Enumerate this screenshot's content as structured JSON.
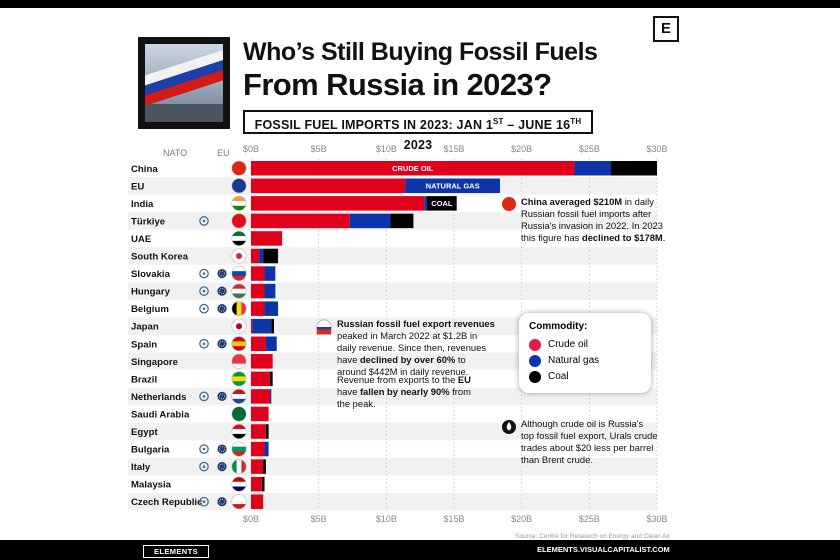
{
  "header": {
    "title_line1": "Who’s Still Buying Fossil Fuels",
    "title_line2": "From Russia in 2023?",
    "subtitle_a": "FOSSIL FUEL IMPORTS IN 2023: JAN 1",
    "subtitle_sup1": "ST",
    "subtitle_b": " – JUNE 16",
    "subtitle_sup2": "TH",
    "subtitle_c": " 2023",
    "logo_letter": "E"
  },
  "column_headers": {
    "nato": "NATO",
    "eu": "EU"
  },
  "colors": {
    "crude_oil": "#e0001b",
    "natural_gas": "#0b35a8",
    "coal": "#000000",
    "nato": "#4a6b8c",
    "eu": "#1a3b8f"
  },
  "chart_data": {
    "type": "bar",
    "orientation": "horizontal",
    "stacked": true,
    "xlim": [
      0,
      30
    ],
    "ticks": [
      "$0B",
      "$5B",
      "$10B",
      "$15B",
      "$20B",
      "$25B",
      "$30B"
    ],
    "tick_values": [
      0,
      5,
      10,
      15,
      20,
      25,
      30
    ],
    "categories": [
      "China",
      "EU",
      "India",
      "Türkiye",
      "UAE",
      "South Korea",
      "Slovakia",
      "Hungary",
      "Belgium",
      "Japan",
      "Spain",
      "Singapore",
      "Brazil",
      "Netherlands",
      "Saudi Arabia",
      "Egypt",
      "Bulgaria",
      "Italy",
      "Malaysia",
      "Czech Republic"
    ],
    "nato": [
      false,
      false,
      false,
      true,
      false,
      false,
      true,
      true,
      true,
      false,
      true,
      false,
      false,
      true,
      false,
      false,
      true,
      true,
      false,
      true
    ],
    "eu": [
      false,
      false,
      false,
      false,
      false,
      false,
      true,
      true,
      true,
      false,
      true,
      false,
      false,
      true,
      false,
      false,
      true,
      true,
      false,
      true
    ],
    "series": [
      {
        "name": "Crude oil",
        "color": "#e0001b",
        "values": [
          23.9,
          11.4,
          12.8,
          7.3,
          2.3,
          0.6,
          1.0,
          1.0,
          1.0,
          0.1,
          1.1,
          1.6,
          1.4,
          1.4,
          1.3,
          1.1,
          1.0,
          0.9,
          0.8,
          0.9
        ]
      },
      {
        "name": "Natural gas",
        "color": "#0b35a8",
        "values": [
          2.7,
          7.0,
          0.2,
          3.0,
          0.0,
          0.3,
          0.8,
          0.8,
          1.0,
          1.4,
          0.8,
          0.0,
          0.0,
          0.1,
          0.0,
          0.0,
          0.3,
          0.0,
          0.0,
          0.0
        ]
      },
      {
        "name": "Coal",
        "color": "#000000",
        "values": [
          3.4,
          0.0,
          2.2,
          1.7,
          0.0,
          1.1,
          0.0,
          0.0,
          0.0,
          0.2,
          0.0,
          0.0,
          0.2,
          0.0,
          0.0,
          0.2,
          0.0,
          0.2,
          0.2,
          0.0
        ]
      }
    ],
    "bar_labels": [
      {
        "row": 0,
        "series": 0,
        "text": "CRUDE OIL"
      },
      {
        "row": 1,
        "series": 1,
        "text": "NATURAL GAS"
      },
      {
        "row": 2,
        "series": 2,
        "text": "COAL"
      }
    ],
    "legend": {
      "title": "Commodity:",
      "items": [
        "Crude oil",
        "Natural gas",
        "Coal"
      ],
      "position": "right"
    },
    "grid": true
  },
  "notes": {
    "china_bold": "China averaged $210M",
    "china_l1_rest": " in daily",
    "china_l2": "Russian fossil fuel imports after",
    "china_l3": "Russia's invasion in 2022. In 2023",
    "china_l4a": "this figure has ",
    "china_l4b": "declined to $178M",
    "china_l4c": ".",
    "russia_bold": "Russian fossil fuel export revenues",
    "russia_l2": "peaked in March 2022 at $1.2B in",
    "russia_l3": "daily revenue. Since then, revenues",
    "russia_l4a": "have ",
    "russia_l4b": "declined by over 60%",
    "russia_l4c": " to",
    "russia_l5": "around $442M in daily revenue.",
    "eu_l1a": "Revenue from exports to the ",
    "eu_l1b": "EU",
    "eu_l2a": "have ",
    "eu_l2b": "fallen by nearly 90%",
    "eu_l2c": " from",
    "eu_l3": "the peak.",
    "crude_l1": "Although crude oil is Russia's",
    "crude_l2": "top fossil fuel export, Urals crude",
    "crude_l3": "trades about $20 less per barrel",
    "crude_l4": "than Brent crude."
  },
  "source": "Source: Centre for Research on Energy and Clean Air",
  "footer": {
    "brand": "ELEMENTS",
    "url": "ELEMENTS.VISUALCAPITALIST.COM"
  }
}
